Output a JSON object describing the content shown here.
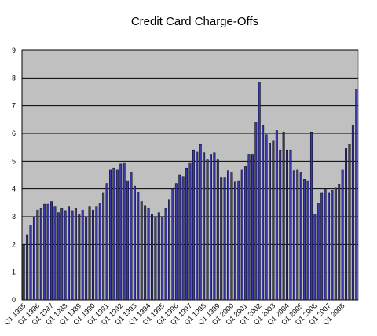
{
  "chart_data": {
    "type": "bar",
    "title": "Credit Card Charge-Offs",
    "xlabel": "",
    "ylabel": "",
    "ylim": [
      0,
      9
    ],
    "yticks": [
      "0",
      "1",
      "2",
      "3",
      "4",
      "5",
      "6",
      "7",
      "8",
      "9"
    ],
    "grid": true,
    "legend": "none",
    "colors": {
      "bar_fill": "#3a3aa8",
      "bar_edge": "#000000",
      "plot_background": "#c0c0c0",
      "gridline": "#000000",
      "page_background": "#ffffff"
    },
    "xtick_labels": [
      "Q1 1985",
      "Q1 1986",
      "Q1 1987",
      "Q1 1988",
      "Q1 1989",
      "Q1 1990",
      "Q1 1991",
      "Q1 1992",
      "Q1 1993",
      "Q1 1994",
      "Q1 1995",
      "Q1 1996",
      "Q1 1997",
      "Q1 1998",
      "Q1 1999",
      "Q1 2000",
      "Q1 2001",
      "Q1 2002",
      "Q1 2003",
      "Q1 2004",
      "Q1 2005",
      "Q1 2006",
      "Q1 2007",
      "Q1 2008"
    ],
    "values": [
      2.0,
      2.35,
      2.7,
      3.0,
      3.25,
      3.3,
      3.45,
      3.45,
      3.55,
      3.35,
      3.15,
      3.3,
      3.2,
      3.35,
      3.2,
      3.3,
      3.1,
      3.25,
      3.0,
      3.35,
      3.25,
      3.35,
      3.5,
      3.85,
      4.2,
      4.7,
      4.75,
      4.7,
      4.9,
      4.95,
      4.3,
      4.6,
      4.1,
      3.9,
      3.55,
      3.4,
      3.3,
      3.1,
      3.0,
      3.15,
      3.0,
      3.3,
      3.6,
      4.0,
      4.2,
      4.5,
      4.45,
      4.75,
      4.95,
      5.4,
      5.35,
      5.6,
      5.3,
      5.05,
      5.25,
      5.3,
      5.05,
      4.4,
      4.4,
      4.65,
      4.6,
      4.25,
      4.3,
      4.7,
      4.8,
      5.25,
      5.25,
      6.4,
      7.85,
      6.3,
      5.95,
      5.65,
      5.75,
      6.1,
      5.4,
      6.05,
      5.4,
      5.4,
      4.65,
      4.7,
      4.6,
      4.35,
      4.3,
      6.05,
      3.1,
      3.5,
      3.85,
      4.0,
      3.85,
      3.95,
      4.05,
      4.15,
      4.7,
      5.45,
      5.6,
      6.3,
      7.6
    ]
  }
}
